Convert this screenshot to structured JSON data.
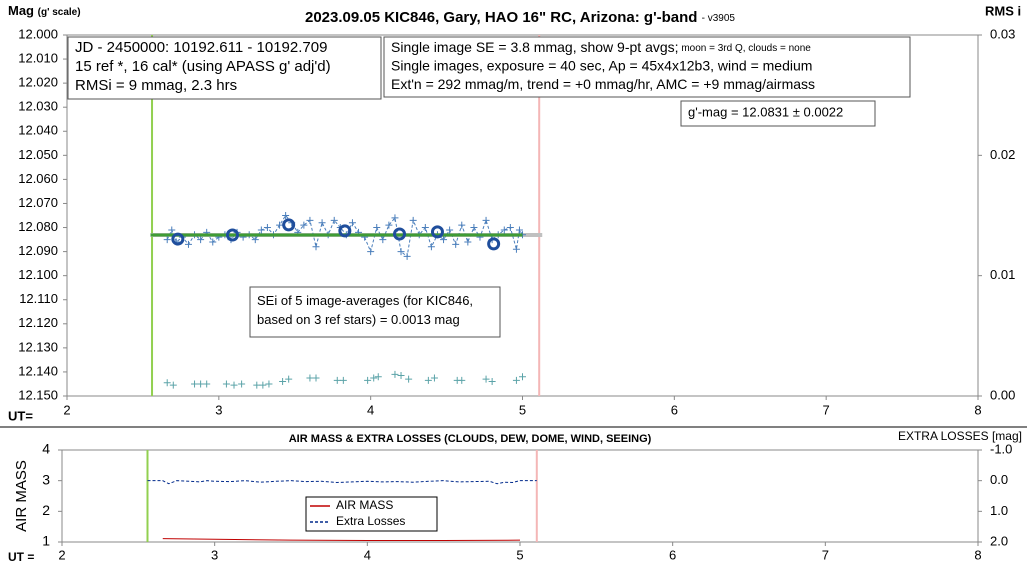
{
  "chart_data": [
    {
      "type": "scatter",
      "title": "2023.09.05 KIC846, Gary, HAO 16\" RC, Arizona: g'-band",
      "subtitle": "- v3905",
      "ylabel": "Mag",
      "ylabel_note": "(g' scale)",
      "y2label": "RMS i",
      "xlabel": "UT=",
      "xlim": [
        2,
        8
      ],
      "xticks": [
        2,
        3,
        4,
        5,
        6,
        7,
        8
      ],
      "ylim": [
        12.15,
        12.0
      ],
      "yticks": [
        {
          "value": 12.0,
          "label": "12.000"
        },
        {
          "value": 12.01,
          "label": "12.010"
        },
        {
          "value": 12.02,
          "label": "12.020"
        },
        {
          "value": 12.03,
          "label": "12.030"
        },
        {
          "value": 12.04,
          "label": "12.040"
        },
        {
          "value": 12.05,
          "label": "12.050"
        },
        {
          "value": 12.06,
          "label": "12.060"
        },
        {
          "value": 12.07,
          "label": "12.070"
        },
        {
          "value": 12.08,
          "label": "12.080"
        },
        {
          "value": 12.09,
          "label": "12.090"
        },
        {
          "value": 12.1,
          "label": "12.100"
        },
        {
          "value": 12.11,
          "label": "12.110"
        },
        {
          "value": 12.12,
          "label": "12.120"
        },
        {
          "value": 12.13,
          "label": "12.130"
        },
        {
          "value": 12.14,
          "label": "12.140"
        },
        {
          "value": 12.15,
          "label": "12.150"
        }
      ],
      "y2lim": [
        0,
        0.03
      ],
      "y2ticks": [
        {
          "value": 0,
          "label": "0.00"
        },
        0.01,
        0.02,
        0.03
      ],
      "vlines": [
        {
          "x": 2.56,
          "color": "#92d050"
        },
        {
          "x": 5.11,
          "color": "#f4b6b6"
        }
      ],
      "series": [
        {
          "color": "#c0c0c0",
          "marker": "none",
          "line": "solid",
          "width": 4,
          "x": [
            2.55,
            5.13
          ],
          "values": [
            12.0831,
            12.0831
          ]
        },
        {
          "color": "#4a7ebb",
          "marker": "plus",
          "line": "dashed",
          "width": 1,
          "x": [
            2.66,
            2.69,
            2.72,
            2.76,
            2.8,
            2.84,
            2.88,
            2.92,
            2.96,
            3.0,
            3.04,
            3.08,
            3.12,
            3.16,
            3.2,
            3.24,
            3.28,
            3.32,
            3.36,
            3.4,
            3.44,
            3.48,
            3.52,
            3.56,
            3.6,
            3.64,
            3.68,
            3.72,
            3.76,
            3.8,
            3.84,
            3.88,
            3.92,
            3.96,
            4.0,
            4.04,
            4.08,
            4.12,
            4.16,
            4.2,
            4.24,
            4.28,
            4.32,
            4.36,
            4.4,
            4.44,
            4.48,
            4.52,
            4.56,
            4.6,
            4.64,
            4.68,
            4.72,
            4.76,
            4.8,
            4.84,
            4.88,
            4.92,
            4.96,
            4.98,
            5.0
          ],
          "values": [
            12.085,
            12.081,
            12.086,
            12.084,
            12.087,
            12.083,
            12.085,
            12.082,
            12.086,
            12.084,
            12.083,
            12.085,
            12.082,
            12.084,
            12.083,
            12.085,
            12.081,
            12.08,
            12.083,
            12.079,
            12.075,
            12.078,
            12.082,
            12.079,
            12.077,
            12.088,
            12.078,
            12.083,
            12.077,
            12.08,
            12.083,
            12.078,
            12.082,
            12.084,
            12.09,
            12.08,
            12.085,
            12.079,
            12.076,
            12.09,
            12.092,
            12.077,
            12.083,
            12.08,
            12.088,
            12.083,
            12.085,
            12.081,
            12.087,
            12.079,
            12.086,
            12.08,
            12.084,
            12.077,
            12.085,
            12.083,
            12.081,
            12.08,
            12.089,
            12.081,
            12.083
          ]
        },
        {
          "color": "#3f9c35",
          "marker": "none",
          "line": "solid",
          "width": 3,
          "x": [
            2.55,
            5.0
          ],
          "values": [
            12.0831,
            12.0831
          ]
        },
        {
          "color": "#1f4e9c",
          "marker": "circle",
          "line": "none",
          "width": 3,
          "x": [
            2.73,
            3.09,
            3.46,
            3.83,
            4.19,
            4.44,
            4.81
          ],
          "values": [
            12.0848,
            12.0831,
            12.0789,
            12.0814,
            12.0827,
            12.0818,
            12.0868
          ]
        },
        {
          "color": "#5ba3a8",
          "marker": "plus",
          "line": "none",
          "width": 1,
          "axis": "y2",
          "x": [
            2.66,
            2.7,
            2.84,
            2.88,
            2.92,
            3.05,
            3.1,
            3.15,
            3.25,
            3.29,
            3.33,
            3.42,
            3.46,
            3.6,
            3.64,
            3.78,
            3.82,
            3.98,
            4.02,
            4.05,
            4.16,
            4.2,
            4.25,
            4.38,
            4.42,
            4.57,
            4.6,
            4.76,
            4.8,
            4.96,
            5.0
          ],
          "values": [
            0.0011,
            0.0009,
            0.001,
            0.001,
            0.001,
            0.001,
            0.0009,
            0.001,
            0.0009,
            0.0009,
            0.001,
            0.0012,
            0.0014,
            0.0015,
            0.0015,
            0.0013,
            0.0013,
            0.0013,
            0.0015,
            0.0016,
            0.0018,
            0.0017,
            0.0014,
            0.0013,
            0.0015,
            0.0013,
            0.0013,
            0.0014,
            0.0012,
            0.0013,
            0.0016
          ]
        }
      ],
      "annotations": [
        {
          "lines": [
            [
              "JD - 2450000: 10192.611 - 10192.709"
            ],
            [
              "15 ref *, 16 cal* (using APASS g' adj'd)"
            ],
            [
              "RMSi = 9 mmag, 2.3 hrs"
            ]
          ]
        },
        {
          "lines": [
            [
              "Single image SE = 3.8 mmag, show  9-pt avgs;",
              " moon = 3rd Q, clouds = none"
            ],
            [
              "Single images, exposure = 40 sec, Ap = 45x4x12b3, wind = medium"
            ],
            [
              "Ext'n = 292 mmag/m, trend = +0 mmag/hr, AMC = +9 mmag/airmass"
            ]
          ]
        },
        {
          "lines": [
            [
              "g'-mag = 12.0831 ± 0.0022"
            ]
          ]
        },
        {
          "lines": [
            [
              "SEi of 5 image-averages (for KIC846,"
            ],
            [
              "based on 3 ref stars) = 0.0013 mag"
            ]
          ]
        }
      ]
    },
    {
      "type": "line",
      "title": "AIR MASS & EXTRA LOSSES (CLOUDS, DEW, DOME, WIND, SEEING)",
      "ylabel": "AIR MASS",
      "y2label": "EXTRA LOSSES [mag]",
      "xlabel": "UT =",
      "xlim": [
        2,
        8
      ],
      "xticks": [
        2,
        3,
        4,
        5,
        6,
        7,
        8
      ],
      "ylim": [
        1,
        4
      ],
      "yticks": [
        1,
        2,
        3,
        4
      ],
      "y2lim": [
        2.0,
        -1.0
      ],
      "y2ticks": [
        {
          "value": -1,
          "label": "-1.0"
        },
        {
          "value": 0,
          "label": "0.0"
        },
        {
          "value": 1,
          "label": "1.0"
        },
        {
          "value": 2,
          "label": "2.0"
        }
      ],
      "vlines": [
        {
          "x": 2.56,
          "color": "#92d050"
        },
        {
          "x": 5.11,
          "color": "#f4b6b6"
        }
      ],
      "legend": "lower center",
      "series": [
        {
          "name": "AIR MASS",
          "color": "#c00000",
          "line": "solid",
          "x": [
            2.66,
            3.0,
            3.5,
            4.0,
            4.5,
            5.0
          ],
          "values": [
            1.11,
            1.09,
            1.06,
            1.05,
            1.05,
            1.06
          ]
        },
        {
          "name": "Extra Losses",
          "color": "#002a8c",
          "line": "dashed",
          "axis": "y2",
          "x": [
            2.56,
            2.66,
            2.7,
            2.75,
            2.84,
            2.9,
            2.95,
            3.0,
            3.1,
            3.2,
            3.3,
            3.4,
            3.5,
            3.6,
            3.7,
            3.8,
            3.9,
            4.0,
            4.1,
            4.2,
            4.3,
            4.4,
            4.5,
            4.6,
            4.7,
            4.8,
            4.85,
            4.9,
            4.95,
            5.0,
            5.11
          ],
          "values": [
            0.0,
            0.0,
            0.1,
            0.0,
            0.02,
            0.04,
            0.0,
            0.02,
            0.03,
            0.0,
            0.05,
            0.02,
            0.0,
            0.03,
            0.02,
            0.06,
            0.04,
            0.02,
            0.04,
            0.03,
            0.05,
            0.02,
            0.0,
            0.04,
            0.03,
            0.02,
            0.1,
            0.05,
            0.06,
            0.0,
            0.0
          ]
        }
      ]
    }
  ]
}
